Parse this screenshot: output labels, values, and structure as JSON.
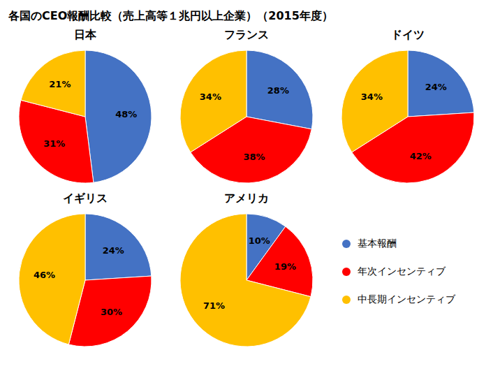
{
  "chart_data": {
    "type": "pie",
    "title": "各国のCEO報酬比較（売上高等１兆円以上企業）（2015年度）",
    "categories": [
      "日本",
      "フランス",
      "ドイツ",
      "イギリス",
      "アメリカ"
    ],
    "series": [
      {
        "name": "基本報酬",
        "color": "#4472C4",
        "values": [
          48,
          28,
          24,
          24,
          10
        ],
        "value_labels": [
          "48%",
          "28%",
          "24%",
          "24%",
          "10%"
        ]
      },
      {
        "name": "年次インセンティブ",
        "color": "#FF0000",
        "values": [
          31,
          38,
          42,
          30,
          19
        ],
        "value_labels": [
          "31%",
          "38%",
          "42%",
          "30%",
          "19%"
        ]
      },
      {
        "name": "中長期インセンティブ",
        "color": "#FFC000",
        "values": [
          21,
          34,
          34,
          46,
          71
        ],
        "value_labels": [
          "21%",
          "34%",
          "34%",
          "46%",
          "71%"
        ]
      }
    ],
    "data_labels": true,
    "legend": "lower right"
  }
}
